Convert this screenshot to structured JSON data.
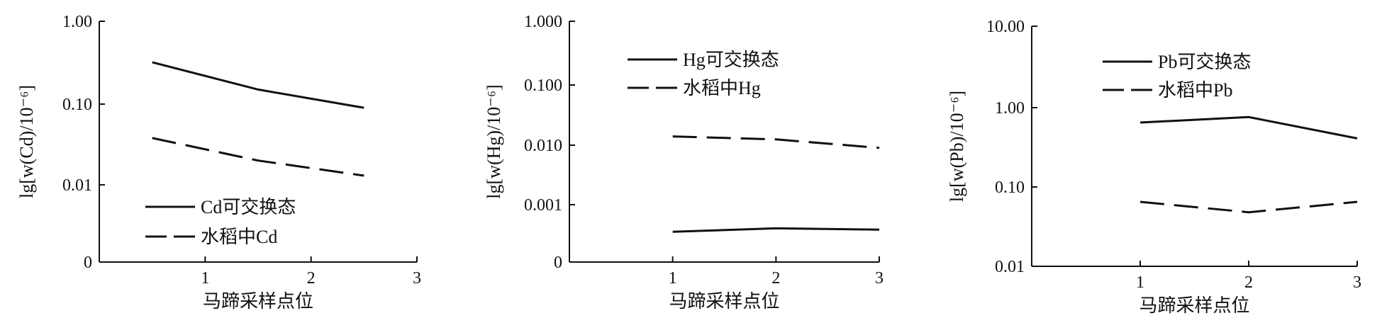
{
  "chart_data": [
    {
      "type": "line",
      "ylabel": "lg[w(Cd)/10⁻⁶]",
      "xlabel": "马蹄采样点位",
      "x_ticks": [
        "1",
        "2",
        "3"
      ],
      "xlim": [
        0,
        3
      ],
      "y_ticks": [
        "1.00",
        "0.10",
        "0.01",
        "0"
      ],
      "y_scale": "log",
      "series": [
        {
          "name": "Cd可交换态",
          "style": "solid",
          "x": [
            0.5,
            1.5,
            2.5
          ],
          "y": [
            0.32,
            0.15,
            0.09
          ]
        },
        {
          "name": "水稻中Cd",
          "style": "dashed",
          "x": [
            0.5,
            1.5,
            2.5
          ],
          "y": [
            0.038,
            0.02,
            0.013
          ]
        }
      ],
      "legend": "bottom-left"
    },
    {
      "type": "line",
      "ylabel": "lg[w(Hg)/10⁻⁶]",
      "xlabel": "马蹄采样点位",
      "x_ticks": [
        "1",
        "2",
        "3"
      ],
      "xlim": [
        0,
        3
      ],
      "y_ticks": [
        "1.000",
        "0.100",
        "0.010",
        "0.001",
        "0"
      ],
      "y_scale": "log",
      "series": [
        {
          "name": "Hg可交换态",
          "style": "solid",
          "x": [
            1,
            2,
            3
          ],
          "y": [
            0.00035,
            0.0004,
            0.00038
          ]
        },
        {
          "name": "水稻中Hg",
          "style": "dashed",
          "x": [
            1,
            2,
            3
          ],
          "y": [
            0.014,
            0.0125,
            0.009
          ]
        }
      ],
      "legend": "top-left"
    },
    {
      "type": "line",
      "ylabel": "lg[w(Pb)/10⁻⁶]",
      "xlabel": "马蹄采样点位",
      "x_ticks": [
        "1",
        "2",
        "3"
      ],
      "xlim": [
        0,
        3
      ],
      "y_ticks": [
        "10.00",
        "1.00",
        "0.10",
        "0.01"
      ],
      "y_scale": "log",
      "series": [
        {
          "name": "Pb可交换态",
          "style": "solid",
          "x": [
            1,
            2,
            3
          ],
          "y": [
            0.65,
            0.76,
            0.41
          ]
        },
        {
          "name": "水稻中Pb",
          "style": "dashed",
          "x": [
            1,
            2,
            3
          ],
          "y": [
            0.065,
            0.048,
            0.065
          ]
        }
      ],
      "legend": "top-left"
    }
  ]
}
